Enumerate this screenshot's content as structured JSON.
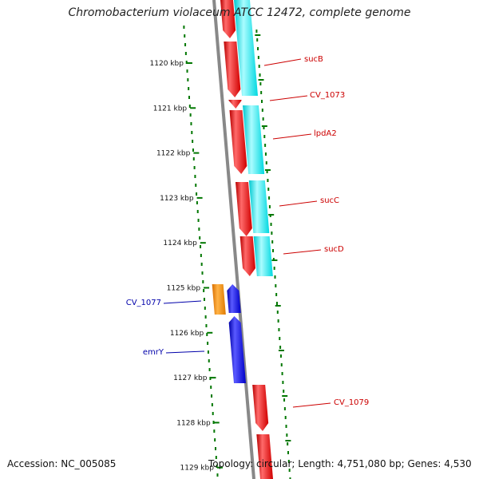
{
  "title": "Chromobacterium violaceum ATCC 12472, complete genome",
  "accession": "Accession: NC_005085",
  "topology": "Topology: circular; Length: 4,751,080 bp; Genes: 4,530",
  "colors": {
    "forward_cds": "#ff0000",
    "reverse_cds": "#0000ee",
    "other_feature": "#ff8c00",
    "conservation": "#00e5ee",
    "backbone": "#888888",
    "tick": "#007700",
    "forward_label": "#cc0000",
    "reverse_label": "#0000aa"
  },
  "ticks": [
    {
      "label": "1120 kbp"
    },
    {
      "label": "1121 kbp"
    },
    {
      "label": "1122 kbp"
    },
    {
      "label": "1123 kbp"
    },
    {
      "label": "1124 kbp"
    },
    {
      "label": "1125 kbp"
    },
    {
      "label": "1126 kbp"
    },
    {
      "label": "1127 kbp"
    },
    {
      "label": "1128 kbp"
    },
    {
      "label": "1129 kbp"
    }
  ],
  "genes": [
    {
      "label": "sucB",
      "strand": "forward"
    },
    {
      "label": "CV_1073",
      "strand": "forward"
    },
    {
      "label": "lpdA2",
      "strand": "forward"
    },
    {
      "label": "sucC",
      "strand": "forward"
    },
    {
      "label": "sucD",
      "strand": "forward"
    },
    {
      "label": "CV_1077",
      "strand": "reverse"
    },
    {
      "label": "emrY",
      "strand": "reverse"
    },
    {
      "label": "CV_1079",
      "strand": "forward"
    }
  ]
}
